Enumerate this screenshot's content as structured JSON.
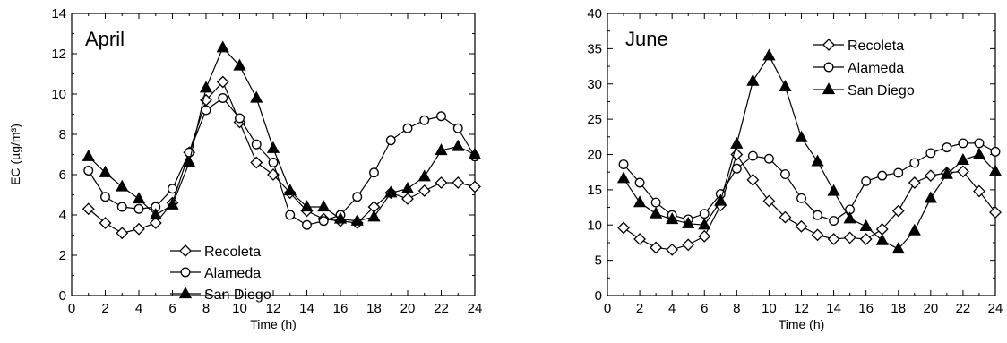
{
  "chart_data": [
    {
      "type": "line",
      "panel_label": "April",
      "xlabel": "Time (h)",
      "ylabel": "EC (µg/m³)",
      "xlim": [
        0,
        24
      ],
      "ylim": [
        0,
        14
      ],
      "xticks": [
        0,
        2,
        4,
        6,
        8,
        10,
        12,
        14,
        16,
        18,
        20,
        22,
        24
      ],
      "yticks": [
        0,
        2,
        4,
        6,
        8,
        10,
        12,
        14
      ],
      "grid": false,
      "legend_position": "bottom-left",
      "x": [
        1,
        2,
        3,
        4,
        5,
        6,
        7,
        8,
        9,
        10,
        11,
        12,
        13,
        14,
        15,
        16,
        17,
        18,
        19,
        20,
        21,
        22,
        23,
        24
      ],
      "series": [
        {
          "name": "Recoleta",
          "marker": "diamond-open",
          "values": [
            4.3,
            3.6,
            3.1,
            3.3,
            3.6,
            4.6,
            7.1,
            9.7,
            10.6,
            8.6,
            6.6,
            6.0,
            5.1,
            4.2,
            3.8,
            3.7,
            3.6,
            4.4,
            5.1,
            4.8,
            5.2,
            5.6,
            5.6,
            5.4
          ]
        },
        {
          "name": "Alameda",
          "marker": "circle-open",
          "values": [
            6.2,
            4.9,
            4.4,
            4.3,
            4.4,
            5.3,
            7.1,
            9.2,
            9.8,
            8.8,
            7.5,
            6.6,
            4.0,
            3.5,
            3.7,
            4.0,
            4.9,
            6.1,
            7.7,
            8.3,
            8.7,
            8.9,
            8.3,
            6.9
          ]
        },
        {
          "name": "San Diego",
          "marker": "triangle-filled",
          "values": [
            6.9,
            6.1,
            5.4,
            4.8,
            4.0,
            4.5,
            6.6,
            10.3,
            12.3,
            11.4,
            9.8,
            7.3,
            5.2,
            4.4,
            4.4,
            3.8,
            3.7,
            3.9,
            5.1,
            5.3,
            5.9,
            7.2,
            7.4,
            7.0
          ]
        }
      ]
    },
    {
      "type": "line",
      "panel_label": "June",
      "xlabel": "Time (h)",
      "ylabel": "",
      "xlim": [
        0,
        24
      ],
      "ylim": [
        0,
        40
      ],
      "xticks": [
        0,
        2,
        4,
        6,
        8,
        10,
        12,
        14,
        16,
        18,
        20,
        22,
        24
      ],
      "yticks": [
        0,
        5,
        10,
        15,
        20,
        25,
        30,
        35,
        40
      ],
      "grid": false,
      "legend_position": "top-right",
      "x": [
        1,
        2,
        3,
        4,
        5,
        6,
        7,
        8,
        9,
        10,
        11,
        12,
        13,
        14,
        15,
        16,
        17,
        18,
        19,
        20,
        21,
        22,
        23,
        24
      ],
      "series": [
        {
          "name": "Recoleta",
          "marker": "diamond-open",
          "values": [
            9.6,
            8.0,
            6.8,
            6.5,
            7.2,
            8.4,
            12.8,
            20.0,
            16.4,
            13.4,
            11.1,
            9.8,
            8.6,
            8.0,
            8.2,
            8.0,
            9.4,
            12.0,
            16.0,
            17.0,
            17.4,
            17.6,
            14.8,
            11.8
          ]
        },
        {
          "name": "Alameda",
          "marker": "circle-open",
          "values": [
            18.6,
            16.0,
            13.2,
            11.4,
            10.8,
            11.6,
            14.4,
            18.0,
            19.8,
            19.4,
            17.2,
            13.8,
            11.4,
            10.6,
            12.2,
            16.2,
            17.0,
            17.4,
            18.8,
            20.2,
            21.0,
            21.6,
            21.6,
            20.4
          ]
        },
        {
          "name": "San Diego",
          "marker": "triangle-filled",
          "values": [
            16.6,
            13.2,
            11.6,
            10.8,
            10.2,
            10.0,
            13.4,
            21.5,
            30.4,
            34.0,
            29.6,
            22.4,
            19.0,
            14.8,
            10.9,
            9.8,
            7.8,
            6.6,
            9.2,
            13.8,
            17.2,
            19.2,
            20.0,
            17.6
          ]
        }
      ]
    }
  ]
}
